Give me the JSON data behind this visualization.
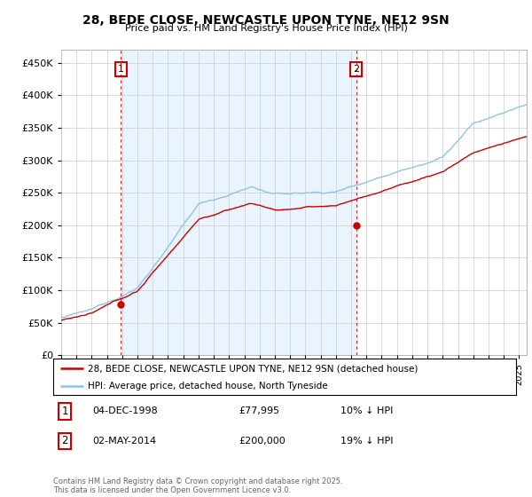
{
  "title_line1": "28, BEDE CLOSE, NEWCASTLE UPON TYNE, NE12 9SN",
  "title_line2": "Price paid vs. HM Land Registry's House Price Index (HPI)",
  "legend_label1": "28, BEDE CLOSE, NEWCASTLE UPON TYNE, NE12 9SN (detached house)",
  "legend_label2": "HPI: Average price, detached house, North Tyneside",
  "sale1_label": "1",
  "sale1_date": "04-DEC-1998",
  "sale1_price": "£77,995",
  "sale1_hpi": "10% ↓ HPI",
  "sale2_label": "2",
  "sale2_date": "02-MAY-2014",
  "sale2_price": "£200,000",
  "sale2_hpi": "19% ↓ HPI",
  "copyright": "Contains HM Land Registry data © Crown copyright and database right 2025.\nThis data is licensed under the Open Government Licence v3.0.",
  "hpi_color": "#8cc4e8",
  "sale_color": "#cc0000",
  "vline_color": "#cc0000",
  "shade_color": "#ddeeff",
  "background_color": "#ffffff",
  "grid_color": "#cccccc",
  "ylim": [
    0,
    470000
  ],
  "yticks": [
    0,
    50000,
    100000,
    150000,
    200000,
    250000,
    300000,
    350000,
    400000,
    450000
  ],
  "xlim_start": 1995.0,
  "xlim_end": 2025.5,
  "sale1_x": 1998.92,
  "sale1_y": 77995,
  "sale2_x": 2014.33,
  "sale2_y": 200000,
  "vline1_x": 1998.92,
  "vline2_x": 2014.33
}
